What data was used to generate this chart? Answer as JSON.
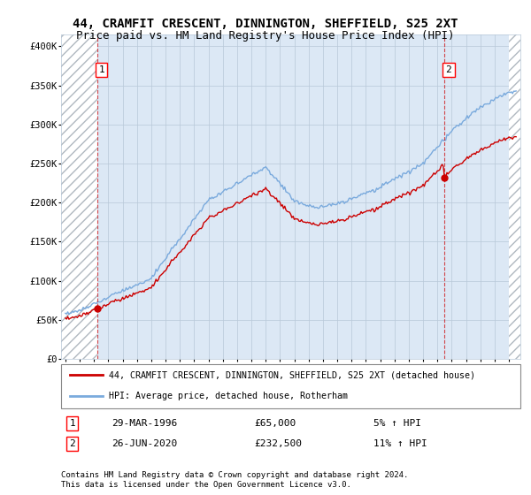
{
  "title": "44, CRAMFIT CRESCENT, DINNINGTON, SHEFFIELD, S25 2XT",
  "subtitle": "Price paid vs. HM Land Registry's House Price Index (HPI)",
  "ylabel_ticks": [
    0,
    50000,
    100000,
    150000,
    200000,
    250000,
    300000,
    350000,
    400000
  ],
  "ylabel_labels": [
    "£0",
    "£50K",
    "£100K",
    "£150K",
    "£200K",
    "£250K",
    "£300K",
    "£350K",
    "£400K"
  ],
  "ylim": [
    0,
    415000
  ],
  "xlim_start": 1993.7,
  "xlim_end": 2025.8,
  "sale1_year": 1996.23,
  "sale1_price": 65000,
  "sale1_label": "1",
  "sale2_year": 2020.48,
  "sale2_price": 232500,
  "sale2_label": "2",
  "sale1_date": "29-MAR-1996",
  "sale1_price_str": "£65,000",
  "sale1_hpi": "5% ↑ HPI",
  "sale2_date": "26-JUN-2020",
  "sale2_price_str": "£232,500",
  "sale2_hpi": "11% ↑ HPI",
  "legend_line1": "44, CRAMFIT CRESCENT, DINNINGTON, SHEFFIELD, S25 2XT (detached house)",
  "legend_line2": "HPI: Average price, detached house, Rotherham",
  "footer": "Contains HM Land Registry data © Crown copyright and database right 2024.\nThis data is licensed under the Open Government Licence v3.0.",
  "bg_color": "#dce8f5",
  "hatch_color": "#b0b8c0",
  "grid_color": "#b8c8d8",
  "red_line_color": "#cc0000",
  "blue_line_color": "#7aaadd",
  "title_fontsize": 10,
  "subtitle_fontsize": 9,
  "tick_fontsize": 7.5
}
